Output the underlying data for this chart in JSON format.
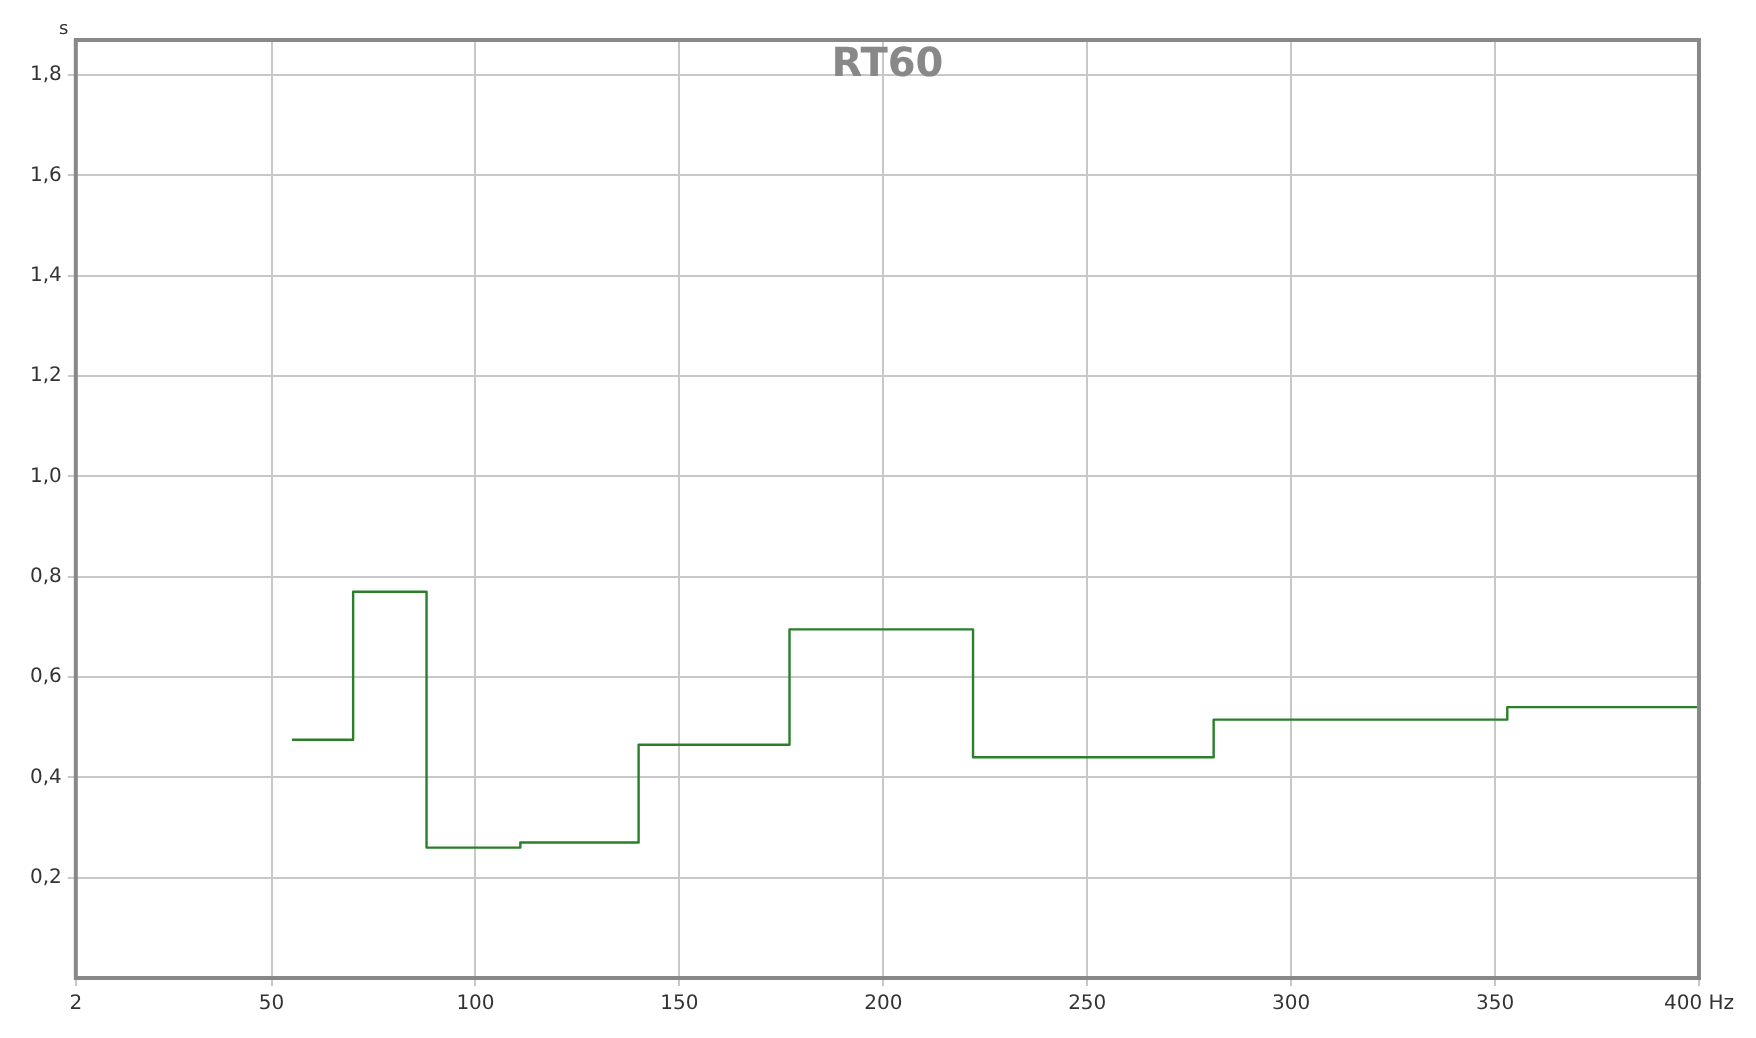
{
  "chart_data": {
    "type": "step",
    "title": "RT60",
    "ylabel": "s",
    "x": [
      55,
      70,
      88,
      111,
      140,
      177,
      222,
      281,
      353,
      400
    ],
    "series": [
      {
        "color": "#2a7f2a",
        "values": [
          0.475,
          0.77,
          0.26,
          0.27,
          0.465,
          0.695,
          0.44,
          0.515,
          0.54,
          0.54
        ]
      }
    ],
    "xlim": [
      2,
      400
    ],
    "xticks": [
      2,
      50,
      100,
      150,
      200,
      250,
      300,
      350,
      {
        "value": 400,
        "label": "400 Hz"
      }
    ],
    "ylim": [
      0,
      1.87
    ],
    "yticks": [
      {
        "value": 0.2,
        "label": "0,2"
      },
      {
        "value": 0.4,
        "label": "0,4"
      },
      {
        "value": 0.6,
        "label": "0,6"
      },
      {
        "value": 0.8,
        "label": "0,8"
      },
      {
        "value": 1.0,
        "label": "1,0"
      },
      {
        "value": 1.2,
        "label": "1,2"
      },
      {
        "value": 1.4,
        "label": "1,4"
      },
      {
        "value": 1.6,
        "label": "1,6"
      },
      {
        "value": 1.8,
        "label": "1,8"
      }
    ],
    "grid": true,
    "legend": false
  }
}
